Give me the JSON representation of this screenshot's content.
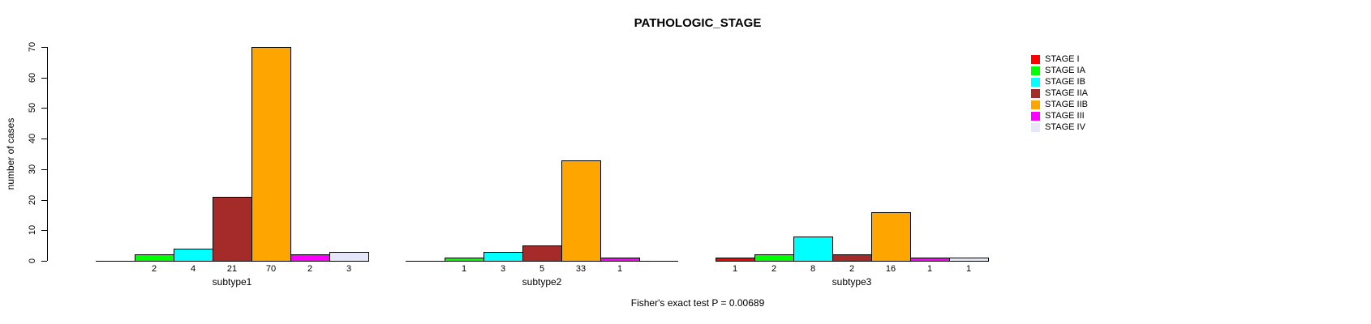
{
  "title": "PATHOLOGIC_STAGE",
  "footer": "Fisher's exact test P = 0.00689",
  "chart_data": {
    "type": "bar",
    "title": "PATHOLOGIC_STAGE",
    "xlabel": "",
    "ylabel": "number of cases",
    "ylim": [
      0,
      70
    ],
    "yticks": [
      0,
      10,
      20,
      30,
      40,
      50,
      60,
      70
    ],
    "grid": false,
    "legend_position": "right",
    "annotation": "Fisher's exact test P = 0.00689",
    "categories": [
      "subtype1",
      "subtype2",
      "subtype3"
    ],
    "legend": [
      {
        "label": "STAGE I",
        "color": "#FF0000"
      },
      {
        "label": "STAGE IA",
        "color": "#00FF00"
      },
      {
        "label": "STAGE IB",
        "color": "#00FFFF"
      },
      {
        "label": "STAGE IIA",
        "color": "#A52A2A"
      },
      {
        "label": "STAGE IIB",
        "color": "#FFA500"
      },
      {
        "label": "STAGE III",
        "color": "#FF00FF"
      },
      {
        "label": "STAGE IV",
        "color": "#E6E6FA"
      }
    ],
    "series": [
      {
        "name": "STAGE I",
        "color": "#FF0000",
        "values": [
          0,
          0,
          1
        ]
      },
      {
        "name": "STAGE IA",
        "color": "#00FF00",
        "values": [
          2,
          1,
          2
        ]
      },
      {
        "name": "STAGE IB",
        "color": "#00FFFF",
        "values": [
          4,
          3,
          8
        ]
      },
      {
        "name": "STAGE IIA",
        "color": "#A52A2A",
        "values": [
          21,
          5,
          2
        ]
      },
      {
        "name": "STAGE IIB",
        "color": "#FFA500",
        "values": [
          70,
          33,
          16
        ]
      },
      {
        "name": "STAGE III",
        "color": "#FF00FF",
        "values": [
          2,
          1,
          1
        ]
      },
      {
        "name": "STAGE IV",
        "color": "#E6E6FA",
        "values": [
          3,
          0,
          1
        ]
      }
    ]
  }
}
